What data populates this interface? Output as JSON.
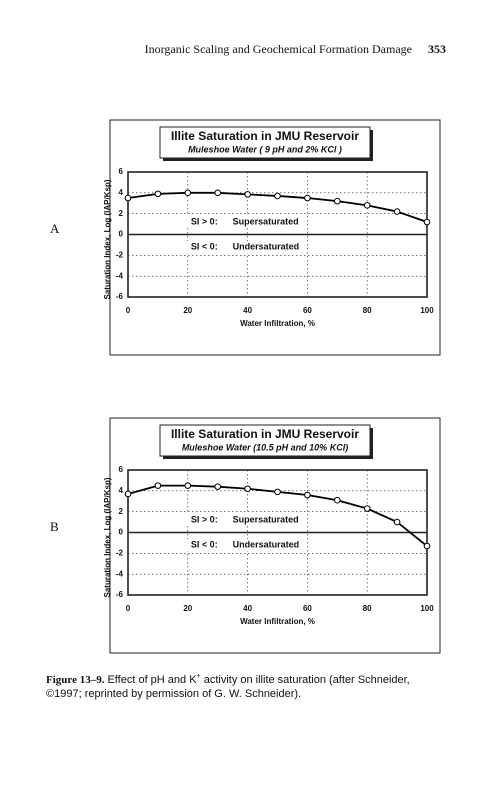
{
  "header": {
    "title": "Inorganic Scaling and Geochemical Formation Damage",
    "page": "353"
  },
  "chart_data": [
    {
      "type": "line",
      "panel": "A",
      "title": "Illite Saturation in JMU Reservoir",
      "subtitle": "Muleshoe Water  ( 9 pH and 2% KCl )",
      "x_label": "Water Infiltration, %",
      "y_label": "Saturation Index, Log (IAP/Ksp)",
      "x": [
        0,
        10,
        20,
        30,
        40,
        50,
        60,
        70,
        80,
        90,
        100
      ],
      "series": [
        {
          "name": "Illite",
          "color": "#000000",
          "values": [
            3.5,
            3.9,
            4.0,
            4.0,
            3.85,
            3.7,
            3.5,
            3.2,
            2.8,
            2.2,
            1.2
          ]
        }
      ],
      "xlim": [
        0,
        100
      ],
      "xticks": [
        0,
        20,
        40,
        60,
        80,
        100
      ],
      "ylim": [
        -6,
        6
      ],
      "yticks": [
        -6,
        -4,
        -2,
        0,
        2,
        4,
        6
      ],
      "grid": true,
      "annotations": [
        "SI > 0:",
        "Supersaturated",
        "SI < 0:",
        "Undersaturated"
      ]
    },
    {
      "type": "line",
      "panel": "B",
      "title": "Illite Saturation in JMU Reservoir",
      "subtitle": "Muleshoe Water (10.5 pH  and  10% KCl)",
      "x_label": "Water Infiltration, %",
      "y_label": "Saturation Index, Log (IAP/Ksp)",
      "x": [
        0,
        10,
        20,
        30,
        40,
        50,
        60,
        70,
        80,
        90,
        100
      ],
      "series": [
        {
          "name": "Illite",
          "color": "#000000",
          "values": [
            3.7,
            4.5,
            4.5,
            4.4,
            4.2,
            3.9,
            3.6,
            3.1,
            2.3,
            1.0,
            -1.3
          ]
        }
      ],
      "xlim": [
        0,
        100
      ],
      "xticks": [
        0,
        20,
        40,
        60,
        80,
        100
      ],
      "ylim": [
        -6,
        6
      ],
      "yticks": [
        -6,
        -4,
        -2,
        0,
        2,
        4,
        6
      ],
      "grid": true,
      "annotations": [
        "SI > 0:",
        "Supersaturated",
        "SI < 0:",
        "Undersaturated"
      ]
    }
  ],
  "caption": {
    "label": "Figure 13–9.",
    "text": "Effect of pH and K",
    "sup": "+",
    "rest": " activity on illite saturation (after Schneider, ©1997; reprinted by permission of G. W. Schneider)."
  }
}
